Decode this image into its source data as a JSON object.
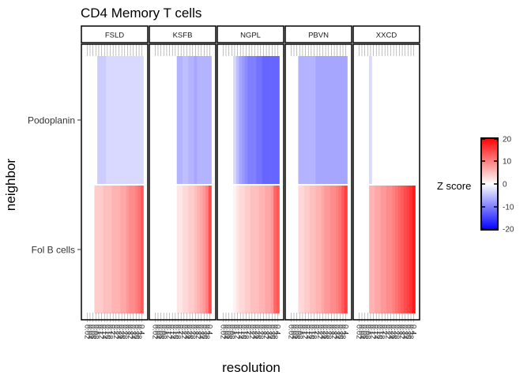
{
  "chart_data": {
    "type": "heatmap",
    "title": "CD4 Memory T cells",
    "xlabel": "resolution",
    "ylabel": "neighbor",
    "facets": [
      "FSLD",
      "KSFB",
      "NGPL",
      "PBVN",
      "XXCD"
    ],
    "rows": [
      "Podoplanin",
      "Fol B cells"
    ],
    "x": [
      0.02,
      0.04,
      0.06,
      0.08,
      0.1,
      0.12,
      0.14,
      0.16,
      0.18,
      0.2,
      0.22,
      0.24,
      0.26,
      0.28,
      0.3,
      0.32,
      0.34,
      0.36,
      0.38,
      0.4
    ],
    "x_tick_labels": [
      "0.02",
      "0.04",
      "0.06",
      "0.08",
      "0.1",
      "0.12",
      "0.14",
      "0.16",
      "0.18",
      "0.2",
      "0.22",
      "0.24",
      "0.26",
      "0.28",
      "0.3",
      "0.32",
      "0.34",
      "0.36",
      "0.38",
      "0.4"
    ],
    "legend": {
      "title": "Z score",
      "ticks": [
        "20",
        "10",
        "0",
        "-10",
        "-20"
      ],
      "range": [
        -20,
        20
      ],
      "colors": {
        "low": "#0000ff",
        "mid": "#ffffff",
        "high": "#ff0000"
      },
      "placement": "right"
    },
    "values": {
      "FSLD": {
        "Podoplanin": [
          null,
          null,
          null,
          null,
          -4,
          -4,
          -4,
          -3,
          -3,
          -3,
          -3,
          -3,
          -3,
          -3,
          -3,
          -3,
          -3,
          -3,
          -3,
          -3
        ],
        "Fol B cells": [
          null,
          null,
          null,
          4,
          4,
          4,
          5,
          5,
          5,
          6,
          6,
          6,
          7,
          7,
          8,
          9,
          9,
          10,
          11,
          13
        ]
      },
      "KSFB": {
        "Podoplanin": [
          null,
          null,
          null,
          null,
          null,
          null,
          null,
          null,
          -6,
          -6,
          -5,
          -5,
          -6,
          -6,
          -7,
          -6,
          -6,
          -6,
          -6,
          -6
        ],
        "Fol B cells": [
          null,
          null,
          null,
          null,
          null,
          null,
          null,
          null,
          2,
          2,
          3,
          3,
          4,
          4,
          5,
          6,
          7,
          8,
          10,
          14
        ]
      },
      "NGPL": {
        "Podoplanin": [
          null,
          null,
          null,
          null,
          -3,
          -5,
          -7,
          -8,
          -9,
          -10,
          -10,
          -10,
          -11,
          -11,
          -12,
          -12,
          -12,
          -12,
          -12,
          -12
        ],
        "Fol B cells": [
          null,
          null,
          null,
          null,
          1,
          2,
          3,
          3,
          4,
          4,
          5,
          5,
          5,
          6,
          6,
          7,
          7,
          8,
          12,
          13
        ]
      },
      "PBVN": {
        "Podoplanin": [
          null,
          null,
          null,
          -6,
          -6,
          -6,
          -6,
          -6,
          -6,
          -7,
          -7,
          -7,
          -7,
          -7,
          -7,
          -7,
          -7,
          -7,
          -7,
          -7
        ],
        "Fol B cells": [
          null,
          null,
          null,
          3,
          3,
          4,
          4,
          5,
          5,
          6,
          6,
          7,
          8,
          8,
          9,
          9,
          10,
          11,
          13,
          15
        ]
      },
      "XXCD": {
        "Podoplanin": [
          null,
          null,
          null,
          null,
          -3,
          0,
          0,
          0,
          0,
          0,
          0,
          0,
          0,
          0,
          0,
          0,
          0,
          0,
          0,
          0
        ],
        "Fol B cells": [
          null,
          null,
          null,
          null,
          6,
          6,
          7,
          7,
          8,
          8,
          9,
          9,
          10,
          11,
          12,
          13,
          14,
          15,
          16,
          18
        ]
      }
    },
    "grid": false
  }
}
